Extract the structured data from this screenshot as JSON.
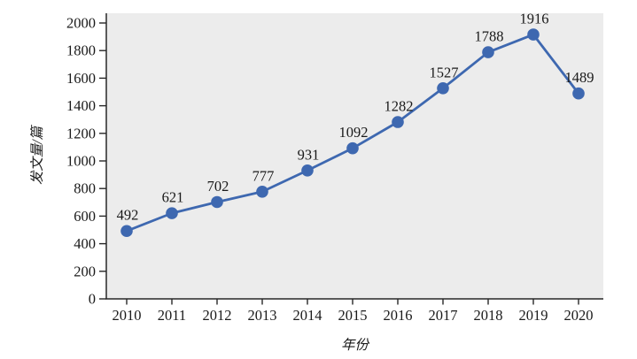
{
  "figure": {
    "background": "#FFFFFF"
  },
  "chart_data": {
    "type": "line",
    "title": "",
    "xlabel": "年份",
    "ylabel": "发文量/篇",
    "categories": [
      "2010",
      "2011",
      "2012",
      "2013",
      "2014",
      "2015",
      "2016",
      "2017",
      "2018",
      "2019",
      "2020"
    ],
    "values": [
      492,
      621,
      702,
      777,
      931,
      1092,
      1282,
      1527,
      1788,
      1916,
      1489
    ],
    "ylim": [
      0,
      2000
    ],
    "yticks": [
      0,
      200,
      400,
      600,
      800,
      1000,
      1200,
      1400,
      1600,
      1800,
      2000
    ],
    "grid": false,
    "legend_position": "none",
    "marker": "circle",
    "data_labels_shown": true,
    "colors": {
      "line": "#3E68B0",
      "marker_fill": "#3E68B0",
      "plot_background": "#ECECEC",
      "axis": "#262626",
      "text": "#1A1A1A"
    }
  }
}
